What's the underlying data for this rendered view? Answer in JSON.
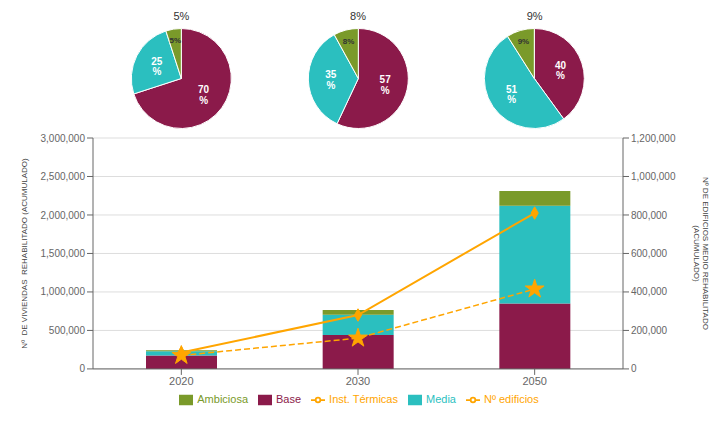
{
  "chart_data": [
    {
      "type": "bar",
      "stacked": true,
      "grid": true,
      "legend": "bottom",
      "categories": [
        "2020",
        "2030",
        "2050"
      ],
      "ylabel": "Nº  DE VIVIENDAS  REHABILITADO (ACUMULADO)",
      "y2label": "Nº DE EDIFICIOS MEDIO REHABILITADO\n(ACUMULADO)",
      "ylim": [
        0,
        3000000
      ],
      "yticks": [
        0,
        {
          "value": 500000,
          "label": "500,000"
        },
        {
          "value": 1000000,
          "label": "1,000,000"
        },
        {
          "value": 1500000,
          "label": "1,500,000"
        },
        {
          "value": 2000000,
          "label": "2,000,000"
        },
        {
          "value": 2500000,
          "label": "2,500,000"
        },
        {
          "value": 3000000,
          "label": "3,000,000"
        }
      ],
      "y2lim": [
        0,
        1200000
      ],
      "y2ticks": [
        0,
        {
          "value": 200000,
          "label": "200,000"
        },
        {
          "value": 400000,
          "label": "400,000"
        },
        {
          "value": 600000,
          "label": "600,000"
        },
        {
          "value": 800000,
          "label": "800,000"
        },
        {
          "value": 1000000,
          "label": "1,000,000"
        },
        {
          "value": 1200000,
          "label": "1,200,000"
        }
      ],
      "series": [
        {
          "name": "Base",
          "type": "bar",
          "color": "#8B1A4A",
          "values": [
            175000,
            440000,
            850000
          ]
        },
        {
          "name": "Media",
          "type": "bar",
          "color": "#2BBFBF",
          "values": [
            55000,
            265000,
            1270000
          ]
        },
        {
          "name": "Ambiciosa",
          "type": "bar",
          "color": "#7A9A2A",
          "values": [
            12000,
            60000,
            190000
          ]
        },
        {
          "name": "Inst. Térmicas",
          "type": "line",
          "axis": "y2",
          "color": "#FFA500",
          "line_style": "dashed",
          "marker": "star",
          "values": [
            70000,
            160000,
            415000
          ]
        },
        {
          "name": "Nº edificios",
          "type": "line",
          "axis": "y2",
          "color": "#FFA500",
          "line_style": "solid",
          "marker": "diamond",
          "values": [
            85000,
            280000,
            810000
          ]
        }
      ]
    },
    {
      "type": "pie",
      "title": "5%",
      "values": [
        70,
        25,
        5
      ],
      "value_labels": [
        "70\n%",
        "25\n%",
        "5%"
      ],
      "colors": [
        "#8B1A4A",
        "#2BBFBF",
        "#7A9A2A"
      ],
      "data_labels": true
    },
    {
      "type": "pie",
      "title": "8%",
      "values": [
        57,
        35,
        8
      ],
      "value_labels": [
        "57\n%",
        "35\n%",
        "8%"
      ],
      "colors": [
        "#8B1A4A",
        "#2BBFBF",
        "#7A9A2A"
      ],
      "data_labels": true
    },
    {
      "type": "pie",
      "title": "9%",
      "values": [
        40,
        51,
        9
      ],
      "value_labels": [
        "40\n%",
        "51\n%",
        "9%"
      ],
      "colors": [
        "#8B1A4A",
        "#2BBFBF",
        "#7A9A2A"
      ],
      "data_labels": true
    }
  ]
}
